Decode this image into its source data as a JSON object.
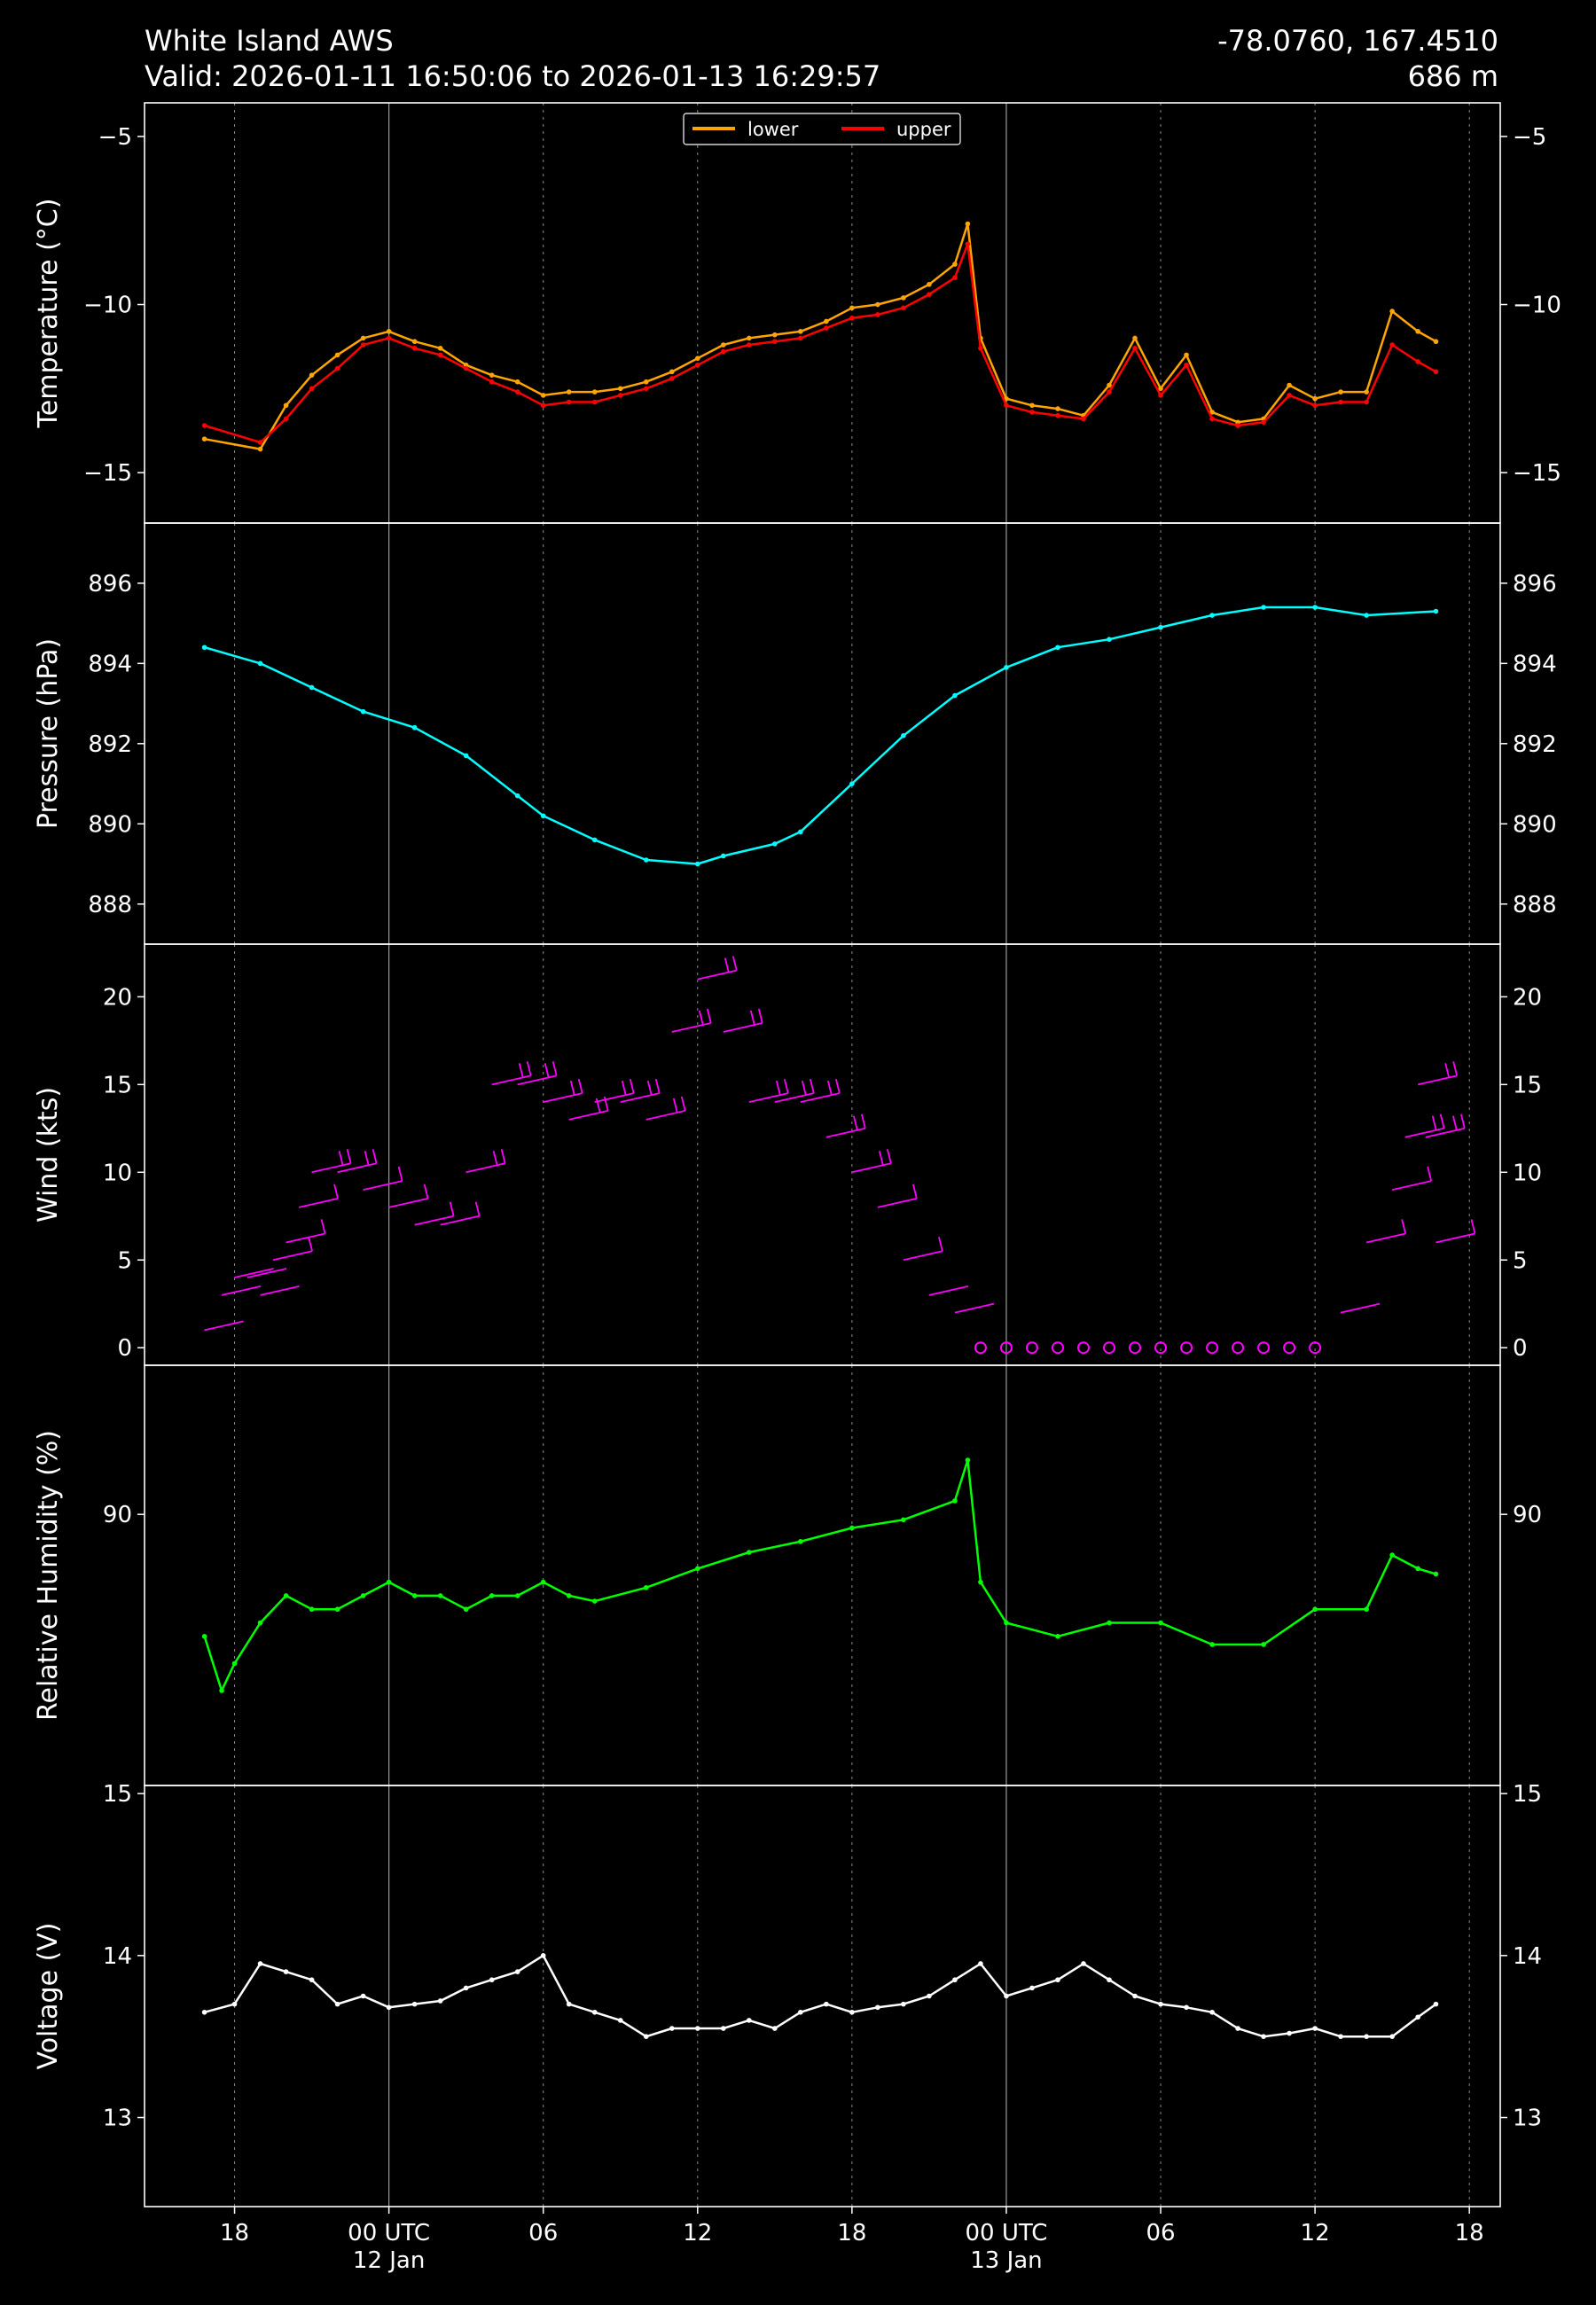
{
  "header": {
    "station": "White Island AWS",
    "valid": "Valid: 2026-01-11 16:50:06 to 2026-01-13 16:29:57",
    "coords": "-78.0760, 167.4510",
    "elevation": "686 m"
  },
  "colors": {
    "lower": "#ffa500",
    "upper": "#ff0000",
    "pressure": "#00ffff",
    "wind": "#ff00ff",
    "humidity": "#00ff00",
    "voltage": "#ffffff",
    "axes": "#ffffff",
    "grid": "#ffffff"
  },
  "chart_data": [
    {
      "type": "line",
      "ylabel": "Temperature ($^\\circ$C)",
      "ylabel_display": "Temperature (°C)",
      "ylim": [
        -16.5,
        -4.0
      ],
      "yticks": [
        -15,
        -10,
        -5
      ],
      "grid": true,
      "legend": "top-center",
      "x_hours": [
        -7.17,
        -5,
        -4,
        -3,
        -2,
        -1,
        0,
        1,
        2,
        3,
        4,
        5,
        6,
        7,
        8,
        9,
        10,
        11,
        12,
        13,
        14,
        15,
        16,
        17,
        18,
        19,
        20,
        21,
        22,
        22.5,
        23,
        24,
        25,
        26,
        27,
        28,
        29,
        30,
        31,
        32,
        33,
        34,
        35,
        36,
        37,
        38,
        39,
        40,
        40.7
      ],
      "series": [
        {
          "name": "lower",
          "values": [
            -14.0,
            -14.3,
            -13.0,
            -12.1,
            -11.5,
            -11.0,
            -10.8,
            -11.1,
            -11.3,
            -11.8,
            -12.1,
            -12.3,
            -12.7,
            -12.6,
            -12.6,
            -12.5,
            -12.3,
            -12.0,
            -11.6,
            -11.2,
            -11.0,
            -10.9,
            -10.8,
            -10.5,
            -10.1,
            -10.0,
            -9.8,
            -9.4,
            -8.8,
            -7.6,
            -11.0,
            -12.8,
            -13.0,
            -13.1,
            -13.3,
            -12.4,
            -11.0,
            -12.5,
            -11.5,
            -13.2,
            -13.5,
            -13.4,
            -12.4,
            -12.8,
            -12.6,
            -12.6,
            -10.2,
            -10.8,
            -11.1
          ]
        },
        {
          "name": "upper",
          "values": [
            -13.6,
            -14.1,
            -13.4,
            -12.5,
            -11.9,
            -11.2,
            -11.0,
            -11.3,
            -11.5,
            -11.9,
            -12.3,
            -12.6,
            -13.0,
            -12.9,
            -12.9,
            -12.7,
            -12.5,
            -12.2,
            -11.8,
            -11.4,
            -11.2,
            -11.1,
            -11.0,
            -10.7,
            -10.4,
            -10.3,
            -10.1,
            -9.7,
            -9.2,
            -8.2,
            -11.3,
            -13.0,
            -13.2,
            -13.3,
            -13.4,
            -12.6,
            -11.3,
            -12.7,
            -11.8,
            -13.4,
            -13.6,
            -13.5,
            -12.7,
            -13.0,
            -12.9,
            -12.9,
            -11.2,
            -11.7,
            -12.0
          ]
        }
      ]
    },
    {
      "type": "line",
      "ylabel": "Pressure (hPa)",
      "ylim": [
        887.0,
        897.5
      ],
      "yticks": [
        888,
        890,
        892,
        894,
        896
      ],
      "grid": true,
      "x_hours": [
        -7.17,
        -5,
        -3,
        -1,
        1,
        3,
        5,
        6,
        8,
        10,
        12,
        13,
        15,
        16,
        18,
        20,
        22,
        24,
        26,
        28,
        30,
        32,
        34,
        36,
        38,
        40.7
      ],
      "series": [
        {
          "name": "",
          "values": [
            894.4,
            894.0,
            893.4,
            892.8,
            892.4,
            891.7,
            890.7,
            890.2,
            889.6,
            889.1,
            889.0,
            889.2,
            889.5,
            889.8,
            891.0,
            892.2,
            893.2,
            893.9,
            894.4,
            894.6,
            894.9,
            895.2,
            895.4,
            895.4,
            895.2,
            895.3
          ]
        }
      ]
    },
    {
      "type": "scatter",
      "ylabel": "Wind (kts)",
      "ylim": [
        -1,
        23
      ],
      "yticks": [
        0,
        5,
        10,
        15,
        20
      ],
      "grid": true,
      "marker": "wind barbs; calm shown as open circles",
      "x_hours": [
        -7.17,
        -6.5,
        -6,
        -5.5,
        -5,
        -4.5,
        -4,
        -3.5,
        -3,
        -2,
        -1,
        0,
        1,
        2,
        3,
        4,
        5,
        6,
        7,
        8,
        9,
        10,
        11,
        12,
        13,
        14,
        15,
        16,
        17,
        18,
        19,
        20,
        21,
        22,
        23,
        24,
        25,
        26,
        27,
        28,
        29,
        30,
        31,
        32,
        33,
        34,
        35,
        36,
        37,
        38,
        39,
        39.5,
        40,
        40.3,
        40.7
      ],
      "series": [
        {
          "name": "",
          "values": [
            1,
            3,
            4,
            4,
            3,
            5,
            6,
            8,
            10,
            10,
            9,
            8,
            7,
            7,
            10,
            15,
            15,
            14,
            13,
            14,
            14,
            13,
            18,
            21,
            18,
            14,
            14,
            14,
            12,
            10,
            8,
            5,
            3,
            2,
            0,
            0,
            0,
            0,
            0,
            0,
            0,
            0,
            0,
            0,
            0,
            0,
            0,
            0,
            2,
            6,
            9,
            12,
            15,
            12,
            6
          ]
        }
      ]
    },
    {
      "type": "line",
      "ylabel": "Relative Humidity (%)",
      "ylim": [
        80.0,
        95.5
      ],
      "yticks": [
        90
      ],
      "grid": true,
      "x_hours": [
        -7.17,
        -6.5,
        -6,
        -5,
        -4,
        -3,
        -2,
        -1,
        0,
        1,
        2,
        3,
        4,
        5,
        6,
        7,
        8,
        10,
        12,
        14,
        16,
        18,
        20,
        22,
        22.5,
        23,
        24,
        26,
        28,
        30,
        32,
        34,
        36,
        38,
        39,
        40,
        40.7
      ],
      "series": [
        {
          "name": "",
          "values": [
            85.5,
            83.5,
            84.5,
            86.0,
            87.0,
            86.5,
            86.5,
            87.0,
            87.5,
            87.0,
            87.0,
            86.5,
            87.0,
            87.0,
            87.5,
            87.0,
            86.8,
            87.3,
            88.0,
            88.6,
            89.0,
            89.5,
            89.8,
            90.5,
            92.0,
            87.5,
            86.0,
            85.5,
            86.0,
            86.0,
            85.2,
            85.2,
            86.5,
            86.5,
            88.5,
            88.0,
            87.8
          ]
        }
      ]
    },
    {
      "type": "line",
      "ylabel": "Voltage (V)",
      "ylim": [
        12.45,
        15.05
      ],
      "yticks": [
        13,
        14,
        15
      ],
      "grid": true,
      "x_hours": [
        -7.17,
        -6,
        -5,
        -4,
        -3,
        -2,
        -1,
        0,
        1,
        2,
        3,
        4,
        5,
        6,
        7,
        8,
        9,
        10,
        11,
        12,
        13,
        14,
        15,
        16,
        17,
        18,
        19,
        20,
        21,
        22,
        23,
        24,
        25,
        26,
        27,
        28,
        29,
        30,
        31,
        32,
        33,
        34,
        35,
        36,
        37,
        38,
        39,
        40,
        40.7
      ],
      "series": [
        {
          "name": "",
          "values": [
            13.65,
            13.7,
            13.95,
            13.9,
            13.85,
            13.7,
            13.75,
            13.68,
            13.7,
            13.72,
            13.8,
            13.85,
            13.9,
            14.0,
            13.7,
            13.65,
            13.6,
            13.5,
            13.55,
            13.55,
            13.55,
            13.6,
            13.55,
            13.65,
            13.7,
            13.65,
            13.68,
            13.7,
            13.75,
            13.85,
            13.95,
            13.75,
            13.8,
            13.85,
            13.95,
            13.85,
            13.75,
            13.7,
            13.68,
            13.65,
            13.55,
            13.5,
            13.52,
            13.55,
            13.5,
            13.5,
            13.5,
            13.62,
            13.7
          ]
        }
      ]
    }
  ],
  "x_axis": {
    "tick_hours": [
      -6,
      0,
      6,
      12,
      18,
      24,
      30,
      36,
      42
    ],
    "tick_labels": [
      "18",
      "00 UTC\n12 Jan",
      "06",
      "12",
      "18",
      "00 UTC\n13 Jan",
      "06",
      "12",
      "18"
    ],
    "xlim_hours": [
      -9.5,
      43.2
    ]
  },
  "legend": {
    "items": [
      {
        "label": "lower",
        "color": "#ffa500"
      },
      {
        "label": "upper",
        "color": "#ff0000"
      }
    ]
  }
}
